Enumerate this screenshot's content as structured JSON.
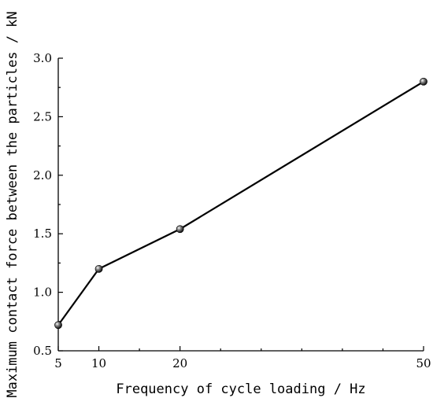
{
  "chart_data": {
    "type": "line",
    "title": "",
    "xlabel": "Frequency of cycle loading / Hz",
    "ylabel": "Maximum contact force between the particles / kN",
    "x": [
      5,
      10,
      20,
      50
    ],
    "x_tick_labels": [
      "5",
      "10",
      "20",
      "50"
    ],
    "y_tick_labels": [
      "0.5",
      "1.0",
      "1.5",
      "2.0",
      "2.5",
      "3.0"
    ],
    "y_ticks": [
      0.5,
      1.0,
      1.5,
      2.0,
      2.5,
      3.0
    ],
    "series": [
      {
        "values": [
          0.72,
          1.2,
          1.54,
          2.8
        ]
      }
    ],
    "xlim": [
      5,
      50
    ],
    "ylim": [
      0.5,
      3.0
    ],
    "grid": false,
    "legend": "none",
    "marker": "sphere",
    "colors": {
      "line": "#000000",
      "marker": "#1a1a1a",
      "axes": "#000000"
    }
  }
}
